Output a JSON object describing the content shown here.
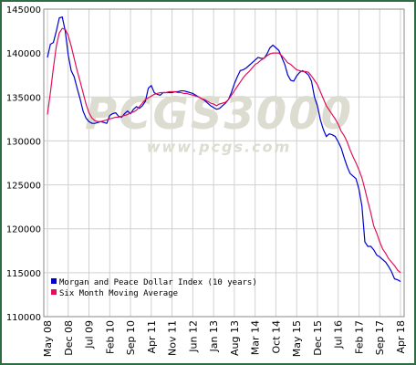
{
  "chart_data": {
    "type": "line",
    "watermark": "PCGS3000",
    "watermark_url": "www.pcgs.com",
    "categories": [
      "May 08",
      null,
      null,
      null,
      null,
      null,
      null,
      "Dec 08",
      null,
      null,
      null,
      null,
      null,
      null,
      "Jul 09",
      null,
      null,
      null,
      null,
      null,
      null,
      "Feb 10",
      null,
      null,
      null,
      null,
      null,
      null,
      "Sep 10",
      null,
      null,
      null,
      null,
      null,
      null,
      "Apr 11",
      null,
      null,
      null,
      null,
      null,
      null,
      "Nov 11",
      null,
      null,
      null,
      null,
      null,
      null,
      "Jun 12",
      null,
      null,
      null,
      null,
      null,
      null,
      "Jan 13",
      null,
      null,
      null,
      null,
      null,
      null,
      "Aug 13",
      null,
      null,
      null,
      null,
      null,
      null,
      "Mar 14",
      null,
      null,
      null,
      null,
      null,
      null,
      "Oct 14",
      null,
      null,
      null,
      null,
      null,
      null,
      "May 15",
      null,
      null,
      null,
      null,
      null,
      null,
      "Dec 15",
      null,
      null,
      null,
      null,
      null,
      null,
      "Jul 16",
      null,
      null,
      null,
      null,
      null,
      null,
      "Feb 17",
      null,
      null,
      null,
      null,
      null,
      null,
      "Sep 17",
      null,
      null,
      null,
      null,
      null,
      null,
      "Apr 18"
    ],
    "series": [
      {
        "name": "Morgan and Peace Dollar Index (10 years)",
        "color": "#0000cc",
        "values": [
          139500,
          141000,
          141200,
          142500,
          144000,
          144100,
          142500,
          139800,
          138000,
          137300,
          136000,
          134800,
          133400,
          132600,
          132200,
          132000,
          132000,
          132100,
          132200,
          132100,
          132000,
          132900,
          133100,
          133200,
          132800,
          132700,
          133100,
          133400,
          133100,
          133600,
          133900,
          133700,
          134000,
          134500,
          136000,
          136300,
          135500,
          135300,
          135200,
          135500,
          135500,
          135500,
          135500,
          135600,
          135600,
          135700,
          135700,
          135600,
          135500,
          135400,
          135200,
          135000,
          134800,
          134600,
          134300,
          134000,
          133800,
          133600,
          133700,
          134000,
          134300,
          134700,
          135500,
          136500,
          137300,
          138000,
          138100,
          138300,
          138600,
          138900,
          139200,
          139500,
          139400,
          139400,
          139900,
          140600,
          140900,
          140600,
          140300,
          139500,
          138700,
          137500,
          136900,
          136800,
          137400,
          137800,
          138000,
          137800,
          137500,
          136800,
          135000,
          134000,
          132400,
          131300,
          130500,
          130800,
          130700,
          130500,
          129900,
          129200,
          128100,
          127100,
          126300,
          126000,
          125700,
          124500,
          122600,
          118500,
          118000,
          118000,
          117600,
          117000,
          116800,
          116500,
          116200,
          115700,
          115100,
          114300,
          114200,
          114000
        ]
      },
      {
        "name": "Six Month Moving Average",
        "color": "#e0105a",
        "values": [
          133000,
          135500,
          138300,
          140800,
          142300,
          142800,
          142700,
          142000,
          140800,
          139400,
          138000,
          136800,
          135500,
          134200,
          133200,
          132600,
          132300,
          132200,
          132200,
          132300,
          132400,
          132500,
          132600,
          132700,
          132700,
          132800,
          132900,
          133000,
          133200,
          133300,
          133500,
          133900,
          134300,
          134700,
          134900,
          135100,
          135300,
          135400,
          135500,
          135500,
          135500,
          135600,
          135600,
          135600,
          135500,
          135500,
          135400,
          135400,
          135300,
          135200,
          135100,
          135000,
          134800,
          134700,
          134500,
          134300,
          134200,
          134000,
          134200,
          134300,
          134400,
          134700,
          135200,
          135700,
          136200,
          136700,
          137200,
          137600,
          137900,
          138300,
          138700,
          138900,
          139200,
          139400,
          139700,
          139900,
          140000,
          140000,
          140000,
          139700,
          139300,
          138900,
          138700,
          138400,
          138100,
          138000,
          137900,
          137900,
          137800,
          137400,
          136900,
          136400,
          135600,
          134800,
          134000,
          133500,
          133000,
          132500,
          131900,
          131100,
          130600,
          129900,
          129000,
          128200,
          127500,
          126700,
          125800,
          124500,
          123100,
          121800,
          120300,
          119500,
          118500,
          117700,
          117200,
          116600,
          116200,
          115800,
          115300,
          115000
        ]
      }
    ],
    "ylim": [
      110000,
      145000
    ],
    "yticks": [
      110000,
      115000,
      120000,
      125000,
      130000,
      135000,
      140000,
      145000
    ],
    "grid": true,
    "legend": "lower left"
  }
}
